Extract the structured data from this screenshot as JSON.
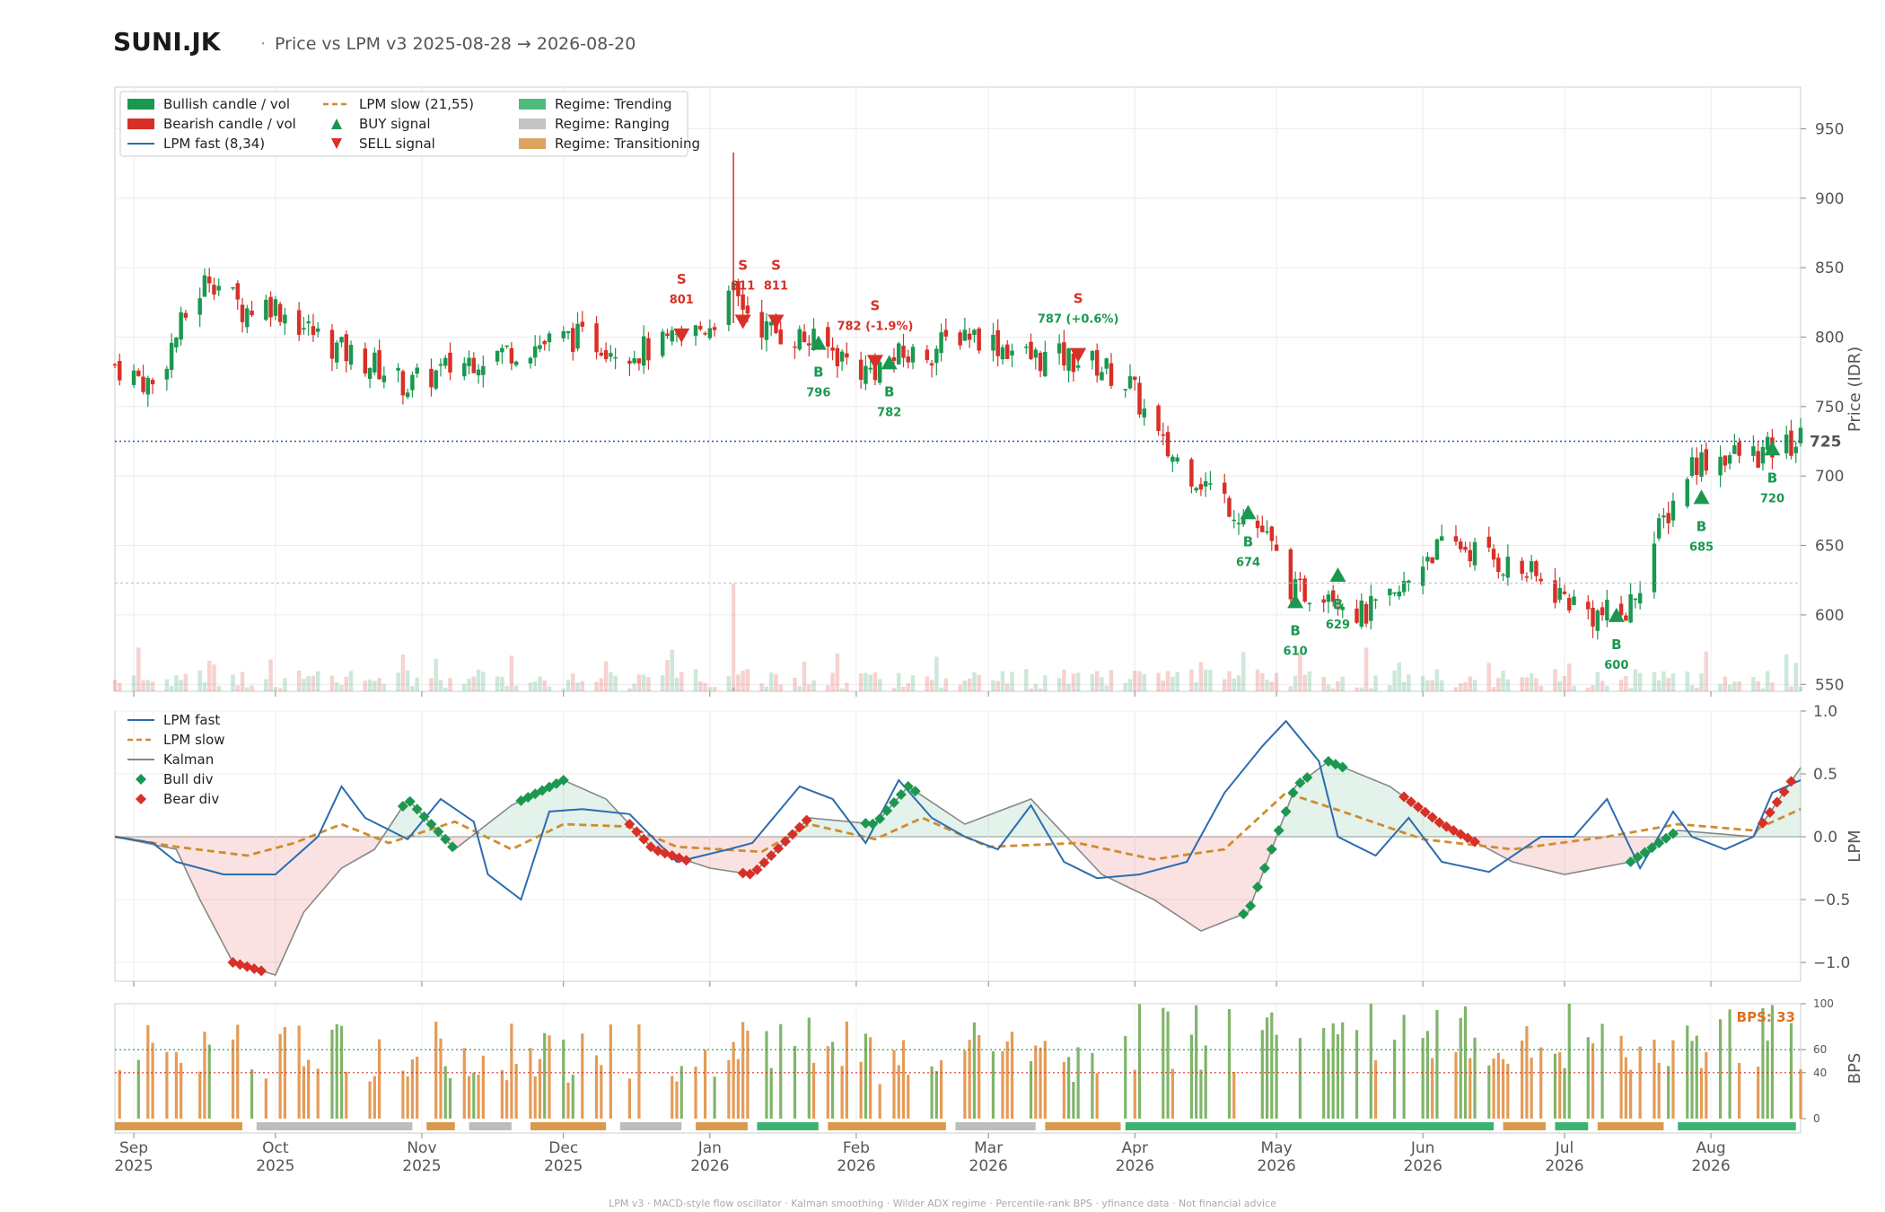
{
  "header": {
    "ticker": "SUNI.JK",
    "subtitle": "Price vs LPM v3  2025-08-28 → 2026-08-20"
  },
  "footer": "LPM v3  ·  MACD-style flow oscillator  ·  Kalman smoothing  ·  Wilder ADX regime  ·  Percentile-rank BPS  ·  yfinance data  ·  Not financial advice",
  "colors": {
    "bull": "#1a9850",
    "bear": "#d73027",
    "fast": "#2b6cb0",
    "slow": "#d08c30",
    "kalman": "#888888",
    "trending": "#3cb371",
    "ranging": "#bdbdbd",
    "transitioning": "#d99a4e",
    "last_price": "#1f5fa8"
  },
  "chart_data": [
    {
      "id": "price",
      "type": "candlestick",
      "ylabel": "Price (IDR)",
      "ylim": [
        545,
        980
      ],
      "yticks": [
        550,
        600,
        650,
        700,
        750,
        800,
        850,
        900,
        950
      ],
      "last_price": 725,
      "last_price_label": "725",
      "reference_level": 623,
      "legend": [
        {
          "key": "bull",
          "label": "Bullish candle / vol",
          "swatch": "rect"
        },
        {
          "key": "bear",
          "label": "Bearish candle / vol",
          "swatch": "rect"
        },
        {
          "key": "fast",
          "label": "LPM fast (8,34)",
          "swatch": "line"
        },
        {
          "key": "slow",
          "label": "LPM slow (21,55)",
          "swatch": "dash"
        },
        {
          "key": "bull",
          "label": "BUY signal",
          "swatch": "up"
        },
        {
          "key": "bear",
          "label": "SELL signal",
          "swatch": "down"
        },
        {
          "key": "trending",
          "label": "Regime: Trending",
          "swatch": "rect"
        },
        {
          "key": "ranging",
          "label": "Regime: Ranging",
          "swatch": "rect"
        },
        {
          "key": "transitioning",
          "label": "Regime: Transitioning",
          "swatch": "rect"
        }
      ],
      "anchors": [
        [
          "2025-08-28",
          780
        ],
        [
          "2025-09-05",
          765
        ],
        [
          "2025-09-12",
          815
        ],
        [
          "2025-09-17",
          845
        ],
        [
          "2025-09-24",
          820
        ],
        [
          "2025-09-30",
          825
        ],
        [
          "2025-10-08",
          805
        ],
        [
          "2025-10-15",
          790
        ],
        [
          "2025-10-22",
          780
        ],
        [
          "2025-10-29",
          765
        ],
        [
          "2025-11-05",
          775
        ],
        [
          "2025-11-12",
          785
        ],
        [
          "2025-11-19",
          790
        ],
        [
          "2025-11-26",
          795
        ],
        [
          "2025-12-03",
          800
        ],
        [
          "2025-12-10",
          795
        ],
        [
          "2025-12-17",
          790
        ],
        [
          "2025-12-24",
          795
        ],
        [
          "2026-01-01",
          810
        ],
        [
          "2026-01-06",
          830
        ],
        [
          "2026-01-13",
          805
        ],
        [
          "2026-01-20",
          800
        ],
        [
          "2026-01-27",
          790
        ],
        [
          "2026-02-03",
          775
        ],
        [
          "2026-02-10",
          785
        ],
        [
          "2026-02-17",
          790
        ],
        [
          "2026-02-24",
          805
        ],
        [
          "2026-03-03",
          795
        ],
        [
          "2026-03-10",
          785
        ],
        [
          "2026-03-17",
          785
        ],
        [
          "2026-03-24",
          780
        ],
        [
          "2026-03-31",
          765
        ],
        [
          "2026-04-07",
          720
        ],
        [
          "2026-04-14",
          700
        ],
        [
          "2026-04-21",
          680
        ],
        [
          "2026-04-28",
          660
        ],
        [
          "2026-05-05",
          615
        ],
        [
          "2026-05-12",
          620
        ],
        [
          "2026-05-19",
          600
        ],
        [
          "2026-05-26",
          610
        ],
        [
          "2026-06-02",
          645
        ],
        [
          "2026-06-09",
          650
        ],
        [
          "2026-06-16",
          640
        ],
        [
          "2026-06-23",
          630
        ],
        [
          "2026-06-30",
          615
        ],
        [
          "2026-07-07",
          600
        ],
        [
          "2026-07-14",
          600
        ],
        [
          "2026-07-21",
          660
        ],
        [
          "2026-07-28",
          710
        ],
        [
          "2026-08-04",
          715
        ],
        [
          "2026-08-11",
          715
        ],
        [
          "2026-08-20",
          725
        ]
      ],
      "spike": {
        "date": "2026-01-06",
        "high": 933
      },
      "signals": [
        {
          "type": "SELL",
          "date": "2025-12-26",
          "price": 801,
          "label": "S",
          "price_label": "801"
        },
        {
          "type": "SELL",
          "date": "2026-01-08",
          "price": 811,
          "label": "S",
          "price_label": "811"
        },
        {
          "type": "SELL",
          "date": "2026-01-15",
          "price": 811,
          "label": "S",
          "price_label": "811"
        },
        {
          "type": "BUY",
          "date": "2026-01-24",
          "price": 796,
          "label": "B",
          "price_label": "796"
        },
        {
          "type": "SELL",
          "date": "2026-02-05",
          "price": 782,
          "label": "S",
          "price_label": "782 (-1.9%)"
        },
        {
          "type": "BUY",
          "date": "2026-02-08",
          "price": 782,
          "label": "B",
          "price_label": "782"
        },
        {
          "type": "SELL",
          "date": "2026-03-20",
          "price": 787,
          "label": "S",
          "price_label": "787 (+0.6%)"
        },
        {
          "type": "BUY",
          "date": "2026-04-25",
          "price": 674,
          "label": "B",
          "price_label": "674"
        },
        {
          "type": "BUY",
          "date": "2026-05-05",
          "price": 610,
          "label": "B",
          "price_label": "610"
        },
        {
          "type": "BUY",
          "date": "2026-05-14",
          "price": 629,
          "label": "B",
          "price_label": "629"
        },
        {
          "type": "BUY",
          "date": "2026-07-12",
          "price": 600,
          "label": "B",
          "price_label": "600"
        },
        {
          "type": "BUY",
          "date": "2026-07-30",
          "price": 685,
          "label": "B",
          "price_label": "685"
        },
        {
          "type": "BUY",
          "date": "2026-08-14",
          "price": 720,
          "label": "B",
          "price_label": "720"
        }
      ]
    },
    {
      "id": "lpm",
      "type": "line",
      "ylabel": "LPM",
      "ylim": [
        -1.15,
        1.0
      ],
      "yticks": [
        -1.0,
        -0.5,
        0.0,
        0.5,
        1.0
      ],
      "ytick_labels": [
        "−1.0",
        "−0.5",
        "0.0",
        "0.5",
        "1.0"
      ],
      "legend": [
        {
          "key": "fast",
          "label": "LPM fast",
          "swatch": "line"
        },
        {
          "key": "slow",
          "label": "LPM slow",
          "swatch": "dash"
        },
        {
          "key": "kalman",
          "label": "Kalman",
          "swatch": "line"
        },
        {
          "key": "bull",
          "label": "Bull div",
          "swatch": "diamond"
        },
        {
          "key": "bear",
          "label": "Bear div",
          "swatch": "diamond"
        }
      ],
      "fast": [
        [
          "2025-08-28",
          0
        ],
        [
          "2025-09-05",
          -0.05
        ],
        [
          "2025-09-10",
          -0.2
        ],
        [
          "2025-09-20",
          -0.3
        ],
        [
          "2025-10-01",
          -0.3
        ],
        [
          "2025-10-10",
          0.0
        ],
        [
          "2025-10-15",
          0.4
        ],
        [
          "2025-10-20",
          0.15
        ],
        [
          "2025-10-29",
          -0.02
        ],
        [
          "2025-11-05",
          0.3
        ],
        [
          "2025-11-12",
          0.12
        ],
        [
          "2025-11-15",
          -0.3
        ],
        [
          "2025-11-22",
          -0.5
        ],
        [
          "2025-11-28",
          0.2
        ],
        [
          "2025-12-05",
          0.22
        ],
        [
          "2025-12-15",
          0.18
        ],
        [
          "2025-12-25",
          -0.2
        ],
        [
          "2026-01-05",
          -0.1
        ],
        [
          "2026-01-10",
          -0.05
        ],
        [
          "2026-01-20",
          0.4
        ],
        [
          "2026-01-27",
          0.3
        ],
        [
          "2026-02-03",
          -0.05
        ],
        [
          "2026-02-10",
          0.45
        ],
        [
          "2026-02-17",
          0.15
        ],
        [
          "2026-02-24",
          0.0
        ],
        [
          "2026-03-03",
          -0.1
        ],
        [
          "2026-03-10",
          0.25
        ],
        [
          "2026-03-17",
          -0.2
        ],
        [
          "2026-03-24",
          -0.33
        ],
        [
          "2026-04-02",
          -0.3
        ],
        [
          "2026-04-12",
          -0.2
        ],
        [
          "2026-04-20",
          0.35
        ],
        [
          "2026-04-28",
          0.72
        ],
        [
          "2026-05-03",
          0.92
        ],
        [
          "2026-05-10",
          0.6
        ],
        [
          "2026-05-14",
          0.0
        ],
        [
          "2026-05-22",
          -0.15
        ],
        [
          "2026-05-29",
          0.15
        ],
        [
          "2026-06-05",
          -0.2
        ],
        [
          "2026-06-15",
          -0.28
        ],
        [
          "2026-06-26",
          0.0
        ],
        [
          "2026-07-03",
          0.0
        ],
        [
          "2026-07-10",
          0.3
        ],
        [
          "2026-07-17",
          -0.25
        ],
        [
          "2026-07-24",
          0.2
        ],
        [
          "2026-07-28",
          0.0
        ],
        [
          "2026-08-04",
          -0.1
        ],
        [
          "2026-08-10",
          0.0
        ],
        [
          "2026-08-14",
          0.35
        ],
        [
          "2026-08-20",
          0.45
        ]
      ],
      "slow": [
        [
          "2025-08-28",
          0
        ],
        [
          "2025-09-10",
          -0.08
        ],
        [
          "2025-09-25",
          -0.15
        ],
        [
          "2025-10-05",
          -0.05
        ],
        [
          "2025-10-15",
          0.1
        ],
        [
          "2025-10-25",
          -0.05
        ],
        [
          "2025-11-08",
          0.12
        ],
        [
          "2025-11-20",
          -0.1
        ],
        [
          "2025-12-01",
          0.1
        ],
        [
          "2025-12-15",
          0.08
        ],
        [
          "2025-12-25",
          -0.08
        ],
        [
          "2026-01-12",
          -0.12
        ],
        [
          "2026-01-22",
          0.1
        ],
        [
          "2026-02-05",
          -0.02
        ],
        [
          "2026-02-15",
          0.15
        ],
        [
          "2026-03-01",
          -0.08
        ],
        [
          "2026-03-20",
          -0.05
        ],
        [
          "2026-04-05",
          -0.18
        ],
        [
          "2026-04-20",
          -0.1
        ],
        [
          "2026-05-03",
          0.35
        ],
        [
          "2026-05-15",
          0.2
        ],
        [
          "2026-06-01",
          -0.02
        ],
        [
          "2026-06-20",
          -0.1
        ],
        [
          "2026-07-10",
          0.0
        ],
        [
          "2026-07-25",
          0.1
        ],
        [
          "2026-08-10",
          0.05
        ],
        [
          "2026-08-20",
          0.22
        ]
      ],
      "kalman": [
        [
          "2025-08-28",
          0
        ],
        [
          "2025-09-10",
          -0.1
        ],
        [
          "2025-09-15",
          -0.5
        ],
        [
          "2025-09-22",
          -1.0
        ],
        [
          "2025-10-01",
          -1.1
        ],
        [
          "2025-10-07",
          -0.6
        ],
        [
          "2025-10-15",
          -0.25
        ],
        [
          "2025-10-22",
          -0.1
        ],
        [
          "2025-10-29",
          0.3
        ],
        [
          "2025-11-08",
          -0.1
        ],
        [
          "2025-11-20",
          0.25
        ],
        [
          "2025-12-01",
          0.45
        ],
        [
          "2025-12-10",
          0.3
        ],
        [
          "2025-12-20",
          -0.1
        ],
        [
          "2026-01-01",
          -0.25
        ],
        [
          "2026-01-10",
          -0.3
        ],
        [
          "2026-01-22",
          0.15
        ],
        [
          "2026-02-05",
          0.1
        ],
        [
          "2026-02-12",
          0.4
        ],
        [
          "2026-02-24",
          0.1
        ],
        [
          "2026-03-10",
          0.3
        ],
        [
          "2026-03-25",
          -0.3
        ],
        [
          "2026-04-05",
          -0.5
        ],
        [
          "2026-04-15",
          -0.75
        ],
        [
          "2026-04-25",
          -0.6
        ],
        [
          "2026-05-05",
          0.4
        ],
        [
          "2026-05-12",
          0.6
        ],
        [
          "2026-05-25",
          0.4
        ],
        [
          "2026-06-05",
          0.1
        ],
        [
          "2026-06-20",
          -0.2
        ],
        [
          "2026-07-01",
          -0.3
        ],
        [
          "2026-07-15",
          -0.2
        ],
        [
          "2026-07-25",
          0.05
        ],
        [
          "2026-08-10",
          0.0
        ],
        [
          "2026-08-20",
          0.55
        ]
      ],
      "bull_div_ranges": [
        [
          "2025-10-28",
          "2025-11-08"
        ],
        [
          "2025-11-22",
          "2025-12-01"
        ],
        [
          "2026-02-03",
          "2026-02-14"
        ],
        [
          "2026-04-24",
          "2026-05-08"
        ],
        [
          "2026-05-12",
          "2026-05-16"
        ],
        [
          "2026-07-15",
          "2026-07-25"
        ]
      ],
      "bear_div_ranges": [
        [
          "2025-09-22",
          "2025-09-28"
        ],
        [
          "2025-12-15",
          "2025-12-27"
        ],
        [
          "2026-01-08",
          "2026-01-22"
        ],
        [
          "2026-05-28",
          "2026-06-12"
        ],
        [
          "2026-08-12",
          "2026-08-18"
        ]
      ]
    },
    {
      "id": "bps",
      "type": "bar",
      "ylabel": "BPS",
      "ylim": [
        0,
        100
      ],
      "yticks": [
        0,
        40,
        60,
        100
      ],
      "thresholds": [
        40,
        60
      ],
      "current_label": "BPS: 33",
      "regime_strip": [
        [
          "2025-08-28",
          "2025-09-24",
          "transitioning"
        ],
        [
          "2025-09-27",
          "2025-10-30",
          "ranging"
        ],
        [
          "2025-11-02",
          "2025-11-08",
          "transitioning"
        ],
        [
          "2025-11-11",
          "2025-11-20",
          "ranging"
        ],
        [
          "2025-11-24",
          "2025-12-10",
          "transitioning"
        ],
        [
          "2025-12-13",
          "2025-12-26",
          "ranging"
        ],
        [
          "2025-12-29",
          "2026-01-09",
          "transitioning"
        ],
        [
          "2026-01-11",
          "2026-01-24",
          "trending"
        ],
        [
          "2026-01-26",
          "2026-02-20",
          "transitioning"
        ],
        [
          "2026-02-22",
          "2026-03-11",
          "ranging"
        ],
        [
          "2026-03-13",
          "2026-03-29",
          "transitioning"
        ],
        [
          "2026-03-30",
          "2026-06-16",
          "trending"
        ],
        [
          "2026-06-18",
          "2026-06-27",
          "transitioning"
        ],
        [
          "2026-06-29",
          "2026-07-06",
          "trending"
        ],
        [
          "2026-07-08",
          "2026-07-22",
          "transitioning"
        ],
        [
          "2026-07-25",
          "2026-08-19",
          "trending"
        ]
      ]
    }
  ],
  "x_axis": {
    "start": "2025-08-28",
    "end": "2026-08-20",
    "ticks": [
      {
        "date": "2025-09-01",
        "month": "Sep",
        "year": "2025"
      },
      {
        "date": "2025-10-01",
        "month": "Oct",
        "year": "2025"
      },
      {
        "date": "2025-11-01",
        "month": "Nov",
        "year": "2025"
      },
      {
        "date": "2025-12-01",
        "month": "Dec",
        "year": "2025"
      },
      {
        "date": "2026-01-01",
        "month": "Jan",
        "year": "2026"
      },
      {
        "date": "2026-02-01",
        "month": "Feb",
        "year": "2026"
      },
      {
        "date": "2026-03-01",
        "month": "Mar",
        "year": "2026"
      },
      {
        "date": "2026-04-01",
        "month": "Apr",
        "year": "2026"
      },
      {
        "date": "2026-05-01",
        "month": "May",
        "year": "2026"
      },
      {
        "date": "2026-06-01",
        "month": "Jun",
        "year": "2026"
      },
      {
        "date": "2026-07-01",
        "month": "Jul",
        "year": "2026"
      },
      {
        "date": "2026-08-01",
        "month": "Aug",
        "year": "2026"
      }
    ]
  }
}
